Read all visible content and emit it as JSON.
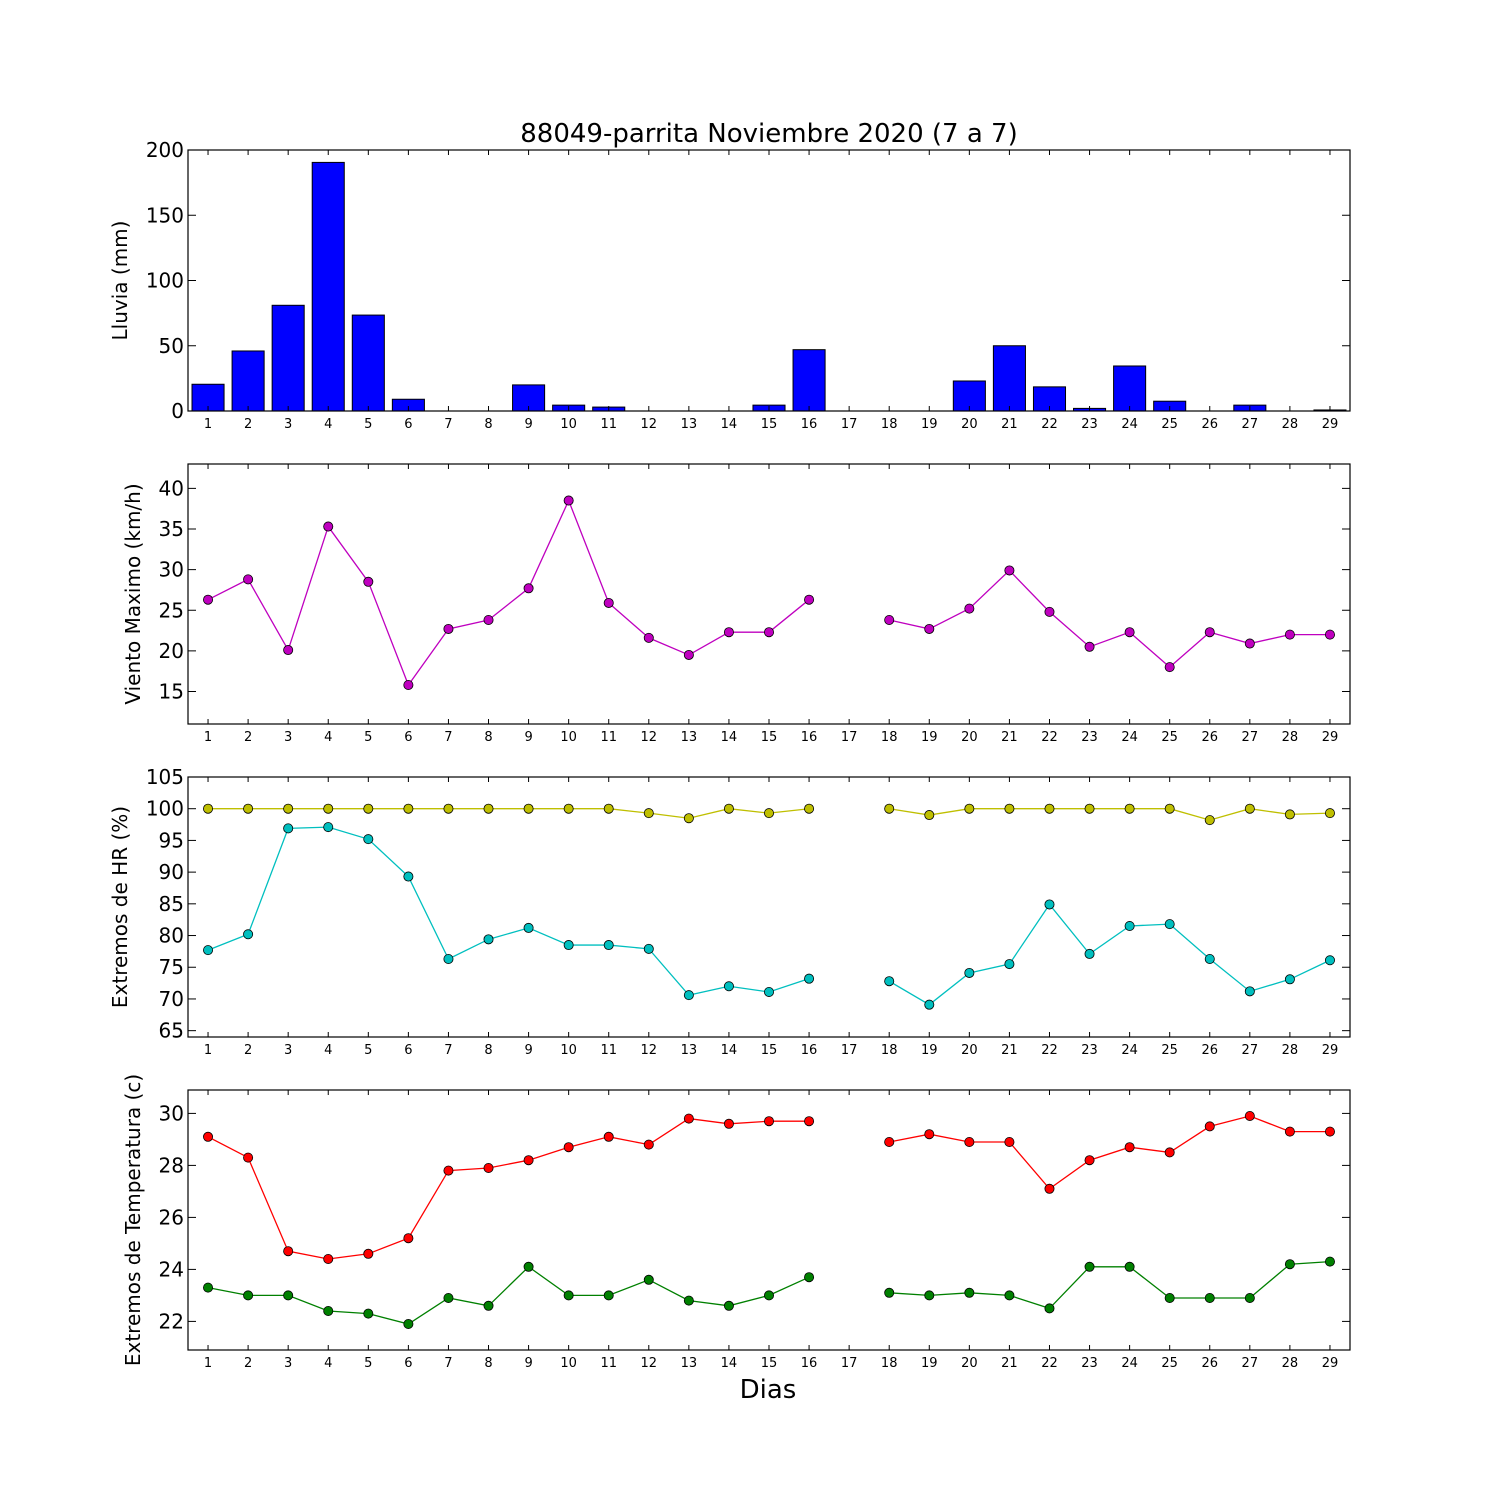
{
  "title": "88049-parrita Noviembre 2020  (7 a 7)",
  "xlabel": "Dias",
  "chart_data": [
    {
      "type": "bar",
      "ylabel": "Lluvia (mm)",
      "ylim": [
        0,
        200
      ],
      "yticks": [
        0,
        50,
        100,
        150,
        200
      ],
      "categories": [
        "1",
        "2",
        "3",
        "4",
        "5",
        "6",
        "7",
        "8",
        "9",
        "10",
        "11",
        "12",
        "13",
        "14",
        "15",
        "16",
        "17",
        "18",
        "19",
        "20",
        "21",
        "22",
        "23",
        "24",
        "25",
        "26",
        "27",
        "28",
        "29"
      ],
      "series": [
        {
          "color": "#0000ff",
          "values": [
            20.5,
            46,
            81,
            190.5,
            73.5,
            9,
            0,
            0,
            20,
            4.5,
            3,
            0,
            0,
            0,
            4.5,
            47,
            0,
            0,
            0,
            23,
            50,
            18.5,
            2,
            34.5,
            7.5,
            0,
            4.5,
            0,
            0.8
          ]
        }
      ]
    },
    {
      "type": "line",
      "ylabel": "Viento Maximo (km/h)",
      "ylim": [
        11,
        43
      ],
      "yticks": [
        15,
        20,
        25,
        30,
        35,
        40
      ],
      "categories": [
        "1",
        "2",
        "3",
        "4",
        "5",
        "6",
        "7",
        "8",
        "9",
        "10",
        "11",
        "12",
        "13",
        "14",
        "15",
        "16",
        "17",
        "18",
        "19",
        "20",
        "21",
        "22",
        "23",
        "24",
        "25",
        "26",
        "27",
        "28",
        "29"
      ],
      "series": [
        {
          "color": "#bf00bf",
          "values": [
            26.3,
            28.8,
            20.1,
            35.3,
            28.5,
            15.8,
            22.7,
            23.8,
            27.7,
            38.5,
            25.9,
            21.6,
            19.5,
            22.3,
            22.3,
            26.3,
            null,
            23.8,
            22.7,
            25.2,
            29.9,
            24.8,
            20.5,
            22.3,
            18.0,
            22.3,
            20.9,
            22.0,
            22.0
          ]
        }
      ]
    },
    {
      "type": "line",
      "ylabel": "Extremos de HR (%)",
      "ylim": [
        64,
        105
      ],
      "yticks": [
        65,
        70,
        75,
        80,
        85,
        90,
        95,
        100,
        105
      ],
      "categories": [
        "1",
        "2",
        "3",
        "4",
        "5",
        "6",
        "7",
        "8",
        "9",
        "10",
        "11",
        "12",
        "13",
        "14",
        "15",
        "16",
        "17",
        "18",
        "19",
        "20",
        "21",
        "22",
        "23",
        "24",
        "25",
        "26",
        "27",
        "28",
        "29"
      ],
      "series": [
        {
          "color": "#bfbf00",
          "values": [
            100,
            100,
            100,
            100,
            100,
            100,
            100,
            100,
            100,
            100,
            100,
            99.3,
            98.5,
            100,
            99.3,
            100,
            null,
            100,
            99.0,
            100,
            100,
            100,
            100,
            100,
            100,
            98.2,
            100,
            99.1,
            99.3
          ]
        },
        {
          "color": "#00bfbf",
          "values": [
            77.7,
            80.2,
            96.9,
            97.1,
            95.2,
            89.3,
            76.3,
            79.4,
            81.2,
            78.5,
            78.5,
            77.9,
            70.6,
            72.0,
            71.1,
            73.2,
            null,
            72.8,
            69.1,
            74.1,
            75.5,
            84.9,
            77.1,
            81.5,
            81.8,
            76.3,
            71.2,
            73.1,
            76.1
          ]
        }
      ]
    },
    {
      "type": "line",
      "ylabel": "Extremos de Temperatura (c)",
      "ylim": [
        20.9,
        30.9
      ],
      "yticks": [
        22,
        24,
        26,
        28,
        30
      ],
      "categories": [
        "1",
        "2",
        "3",
        "4",
        "5",
        "6",
        "7",
        "8",
        "9",
        "10",
        "11",
        "12",
        "13",
        "14",
        "15",
        "16",
        "17",
        "18",
        "19",
        "20",
        "21",
        "22",
        "23",
        "24",
        "25",
        "26",
        "27",
        "28",
        "29"
      ],
      "series": [
        {
          "color": "#ff0000",
          "values": [
            29.1,
            28.3,
            24.7,
            24.4,
            24.6,
            25.2,
            27.8,
            27.9,
            28.2,
            28.7,
            29.1,
            28.8,
            29.8,
            29.6,
            29.7,
            29.7,
            null,
            28.9,
            29.2,
            28.9,
            28.9,
            27.1,
            28.2,
            28.7,
            28.5,
            29.5,
            29.9,
            29.3,
            29.3
          ]
        },
        {
          "color": "#008000",
          "values": [
            23.3,
            23.0,
            23.0,
            22.4,
            22.3,
            21.9,
            22.9,
            22.6,
            24.1,
            23.0,
            23.0,
            23.6,
            22.8,
            22.6,
            23.0,
            23.7,
            null,
            23.1,
            23.0,
            23.1,
            23.0,
            22.5,
            24.1,
            24.1,
            22.9,
            22.9,
            22.9,
            24.2,
            24.3
          ]
        }
      ]
    }
  ]
}
